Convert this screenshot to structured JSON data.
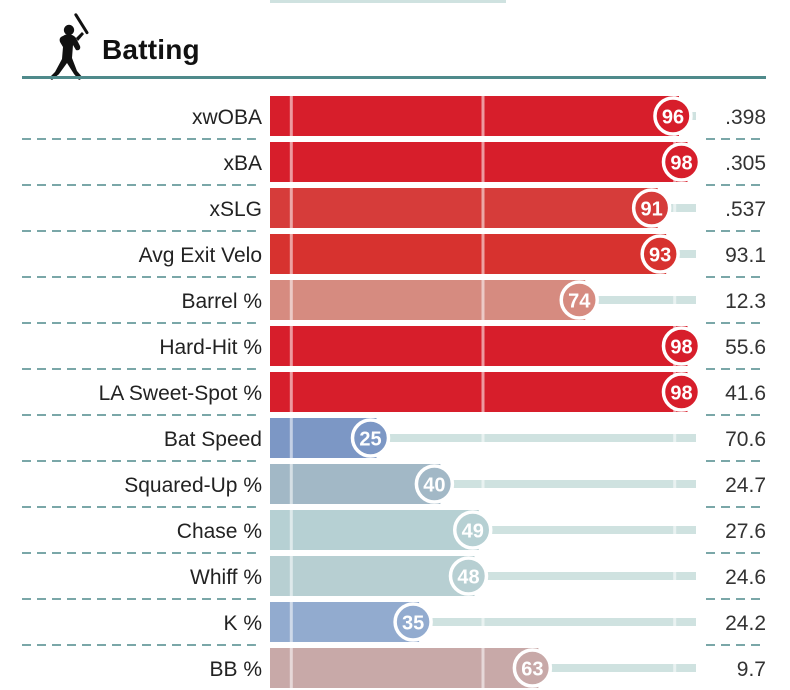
{
  "section": {
    "title": "Batting",
    "icon": "batter-silhouette-icon"
  },
  "colors": {
    "header_rule": "#4f8a8b",
    "track": "#cfe2e0",
    "divider": "#4f8a8b",
    "scale_hot": "#d71e2b",
    "scale_cold": "#6f8fc0"
  },
  "chart_data": {
    "type": "bar",
    "orientation": "horizontal",
    "xlim": [
      0,
      100
    ],
    "value_meaning": "percentile rank",
    "categories": [
      "xwOBA",
      "xBA",
      "xSLG",
      "Avg Exit Velo",
      "Barrel %",
      "Hard-Hit %",
      "LA Sweet-Spot %",
      "Bat Speed",
      "Squared-Up %",
      "Chase %",
      "Whiff %",
      "K %",
      "BB %"
    ],
    "values": [
      96,
      98,
      91,
      93,
      74,
      98,
      98,
      25,
      40,
      49,
      48,
      35,
      63
    ],
    "stat_values": [
      ".398",
      ".305",
      ".537",
      "93.1",
      "12.3",
      "55.6",
      "41.6",
      "70.6",
      "24.7",
      "27.6",
      "24.6",
      "24.2",
      "9.7"
    ],
    "bar_colors": [
      "#d71e2b",
      "#d71e2b",
      "#d63c3a",
      "#d7322f",
      "#d68b80",
      "#d71e2b",
      "#d71e2b",
      "#7c97c5",
      "#a2b8c6",
      "#b6d0d3",
      "#b7cfd2",
      "#92abcf",
      "#c8a9a8"
    ],
    "reference_lines": [
      5,
      50,
      95
    ],
    "grid": false
  }
}
